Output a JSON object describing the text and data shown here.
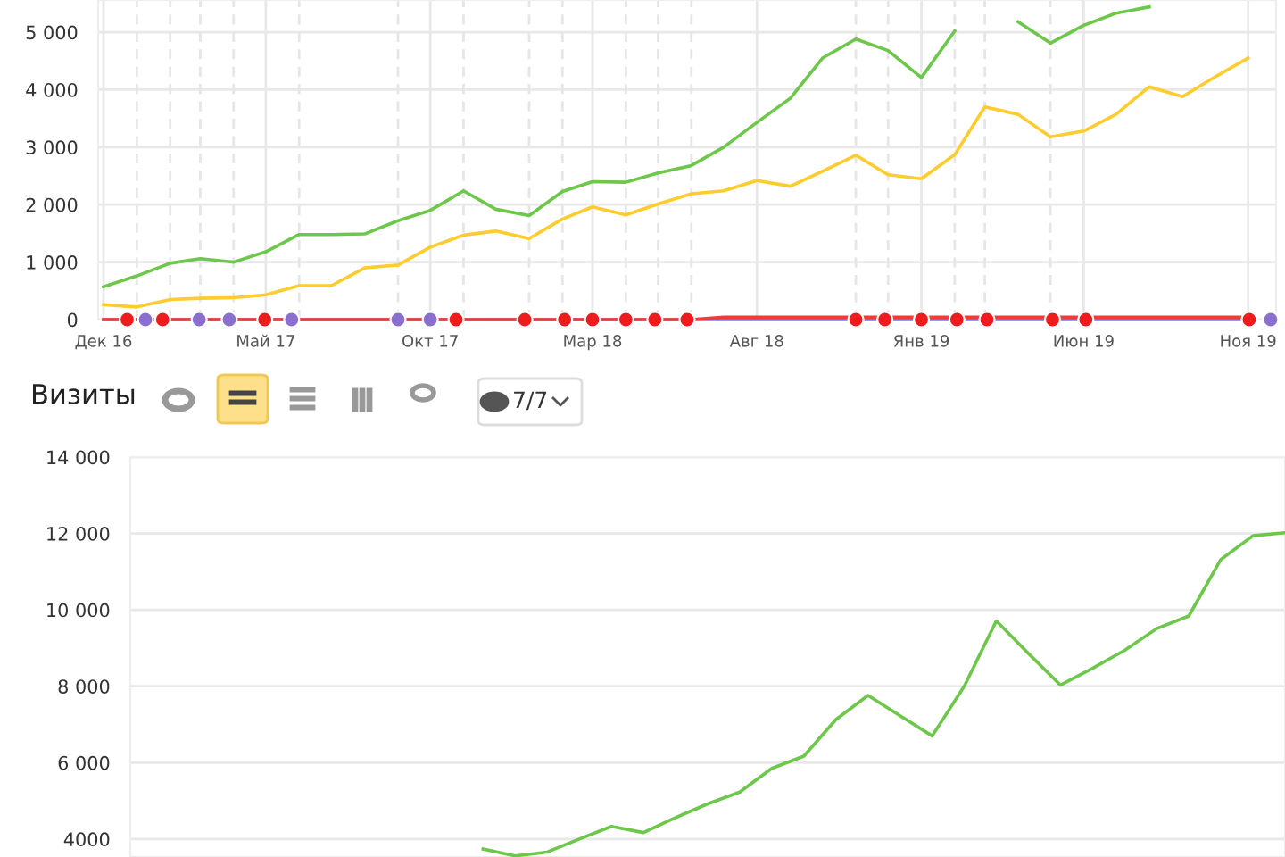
{
  "chart_data": [
    {
      "type": "line",
      "xlim": [
        "2016-11-26",
        "2019-11-27"
      ],
      "ylim": [
        0,
        5560
      ],
      "xticks": [
        {
          "value": "2016-12",
          "label": "Дек 16"
        },
        {
          "value": "2017-05",
          "label": "Май 17"
        },
        {
          "value": "2017-10",
          "label": "Окт 17"
        },
        {
          "value": "2018-03",
          "label": "Мар 18"
        },
        {
          "value": "2018-08",
          "label": "Авг 18"
        },
        {
          "value": "2019-01",
          "label": "Янв 19"
        },
        {
          "value": "2019-06",
          "label": "Июн 19"
        },
        {
          "value": "2019-11",
          "label": "Ноя 19"
        }
      ],
      "yticks": [
        0,
        {
          "value": 1000,
          "label": "1 000"
        },
        {
          "value": 2000,
          "label": "2 000"
        },
        {
          "value": 3000,
          "label": "3 000"
        },
        {
          "value": 4000,
          "label": "4 000"
        },
        {
          "value": 5000,
          "label": "5 000"
        }
      ],
      "grid": true,
      "legend": false,
      "ref_lines": [
        {
          "axis": "x",
          "value": "2017-01",
          "line_style": "dashed"
        },
        {
          "axis": "x",
          "value": "2017-02",
          "line_style": "dashed"
        },
        {
          "axis": "x",
          "value": "2017-03",
          "line_style": "dashed"
        },
        {
          "axis": "x",
          "value": "2017-04",
          "line_style": "dashed"
        },
        {
          "axis": "x",
          "value": "2017-06",
          "line_style": "dashed"
        },
        {
          "axis": "x",
          "value": "2017-09",
          "line_style": "dashed"
        },
        {
          "axis": "x",
          "value": "2017-11",
          "line_style": "dashed"
        },
        {
          "axis": "x",
          "value": "2018-01",
          "line_style": "dashed"
        },
        {
          "axis": "x",
          "value": "2018-02",
          "line_style": "dashed"
        },
        {
          "axis": "x",
          "value": "2018-04",
          "line_style": "dashed"
        },
        {
          "axis": "x",
          "value": "2018-05",
          "line_style": "dashed"
        },
        {
          "axis": "x",
          "value": "2018-06",
          "line_style": "dashed"
        },
        {
          "axis": "x",
          "value": "2018-11",
          "line_style": "dashed"
        },
        {
          "axis": "x",
          "value": "2018-12",
          "line_style": "dashed"
        },
        {
          "axis": "x",
          "value": "2019-02",
          "line_style": "dashed"
        },
        {
          "axis": "x",
          "value": "2019-03",
          "line_style": "dashed"
        },
        {
          "axis": "x",
          "value": "2019-05",
          "line_style": "dashed"
        }
      ],
      "series": [
        {
          "color": "#6dc74a",
          "x": [
            "2016-12",
            "2017-01",
            "2017-02",
            "2017-03",
            "2017-04",
            "2017-05",
            "2017-06",
            "2017-07",
            "2017-08",
            "2017-09",
            "2017-10",
            "2017-11",
            "2017-12",
            "2018-01",
            "2018-02",
            "2018-03",
            "2018-04",
            "2018-05",
            "2018-06",
            "2018-07",
            "2018-08",
            "2018-09",
            "2018-10",
            "2018-11",
            "2018-12",
            "2019-01",
            "2019-02",
            "2019-03",
            "2019-04",
            "2019-05",
            "2019-06",
            "2019-07",
            "2019-08"
          ],
          "values": [
            570,
            760,
            980,
            1060,
            1000,
            1180,
            1480,
            1480,
            1490,
            1720,
            1900,
            2240,
            1920,
            1810,
            2230,
            2400,
            2390,
            2550,
            2680,
            3000,
            3430,
            3850,
            4550,
            4880,
            4680,
            4210,
            5020,
            null,
            5180,
            4810,
            5120,
            5330,
            5440
          ]
        },
        {
          "color": "#ffcc2e",
          "x": [
            "2016-12",
            "2017-01",
            "2017-02",
            "2017-03",
            "2017-04",
            "2017-05",
            "2017-06",
            "2017-07",
            "2017-08",
            "2017-09",
            "2017-10",
            "2017-11",
            "2017-12",
            "2018-01",
            "2018-02",
            "2018-03",
            "2018-04",
            "2018-05",
            "2018-06",
            "2018-07",
            "2018-08",
            "2018-09",
            "2018-10",
            "2018-11",
            "2018-12",
            "2019-01",
            "2019-02",
            "2019-03",
            "2019-04",
            "2019-05",
            "2019-06",
            "2019-07",
            "2019-08",
            "2019-09",
            "2019-10",
            "2019-11"
          ],
          "values": [
            260,
            220,
            350,
            370,
            380,
            430,
            590,
            590,
            900,
            950,
            1260,
            1470,
            1540,
            1410,
            1750,
            1960,
            1820,
            2010,
            2190,
            2240,
            2420,
            2320,
            2580,
            2860,
            2520,
            2450,
            2870,
            3700,
            3570,
            3180,
            3280,
            3570,
            4050,
            3880,
            4220,
            4550
          ]
        },
        {
          "color": "#8a6fd1",
          "x": [
            "2016-12",
            "2019-11"
          ],
          "values": [
            0,
            0
          ]
        },
        {
          "color": "#ee3b3b",
          "x": [
            "2016-12",
            "2018-06",
            "2018-07",
            "2019-11"
          ],
          "values": [
            0,
            0,
            40,
            40
          ]
        },
        {
          "type": "scatter",
          "marker": "circle",
          "color": "#8a6fd1",
          "x": [
            "2017-01-09",
            "2017-02-28",
            "2017-03-28",
            "2017-05-25",
            "2017-09-01",
            "2017-10-01",
            "2019-11-22"
          ],
          "values": [
            0,
            0,
            0,
            0,
            0,
            0,
            0
          ]
        },
        {
          "type": "scatter",
          "marker": "circle",
          "color": "#ee1c1c",
          "x": [
            "2016-12-23",
            "2017-01-25",
            "2017-04-30",
            "2017-10-25",
            "2017-12-28",
            "2018-02-03",
            "2018-03-01",
            "2018-04-01",
            "2018-04-28",
            "2018-05-28",
            "2018-11-01",
            "2018-11-28",
            "2019-01-01",
            "2019-02-03",
            "2019-03-03",
            "2019-05-03",
            "2019-06-03",
            "2019-11-02"
          ],
          "values": [
            0,
            0,
            0,
            0,
            0,
            0,
            0,
            0,
            0,
            0,
            0,
            0,
            0,
            0,
            0,
            0,
            0,
            0
          ]
        }
      ]
    },
    {
      "type": "line",
      "title": "Визиты",
      "annotations": [
        "7/7"
      ],
      "ylim": [
        3530,
        14000
      ],
      "tick_labels": "y",
      "categories": [
        null,
        null,
        null,
        null,
        null,
        null,
        null,
        null,
        null,
        null,
        null,
        null,
        null,
        null,
        null,
        null,
        null,
        null,
        null,
        null,
        null,
        null,
        null,
        null,
        null,
        null,
        null,
        null,
        null,
        null,
        null,
        null,
        null,
        null,
        null,
        null,
        null
      ],
      "yticks": [
        {
          "value": 4000,
          "label": "4000"
        },
        {
          "value": 6000,
          "label": "6 000"
        },
        {
          "value": 8000,
          "label": "8 000"
        },
        {
          "value": 10000,
          "label": "10 000"
        },
        {
          "value": 12000,
          "label": "12 000"
        },
        {
          "value": 14000,
          "label": "14 000"
        }
      ],
      "grid": "y",
      "legend": false,
      "series": [
        {
          "color": "#6dc74a",
          "values": [
            null,
            null,
            null,
            null,
            null,
            null,
            null,
            null,
            null,
            null,
            null,
            3740,
            3560,
            3660,
            4000,
            4330,
            4170,
            4560,
            4920,
            5230,
            5850,
            6170,
            7130,
            7760,
            7230,
            6700,
            8000,
            9710,
            8860,
            8030,
            8470,
            8940,
            9510,
            9840,
            11320,
            11940,
            12020
          ]
        }
      ]
    }
  ]
}
